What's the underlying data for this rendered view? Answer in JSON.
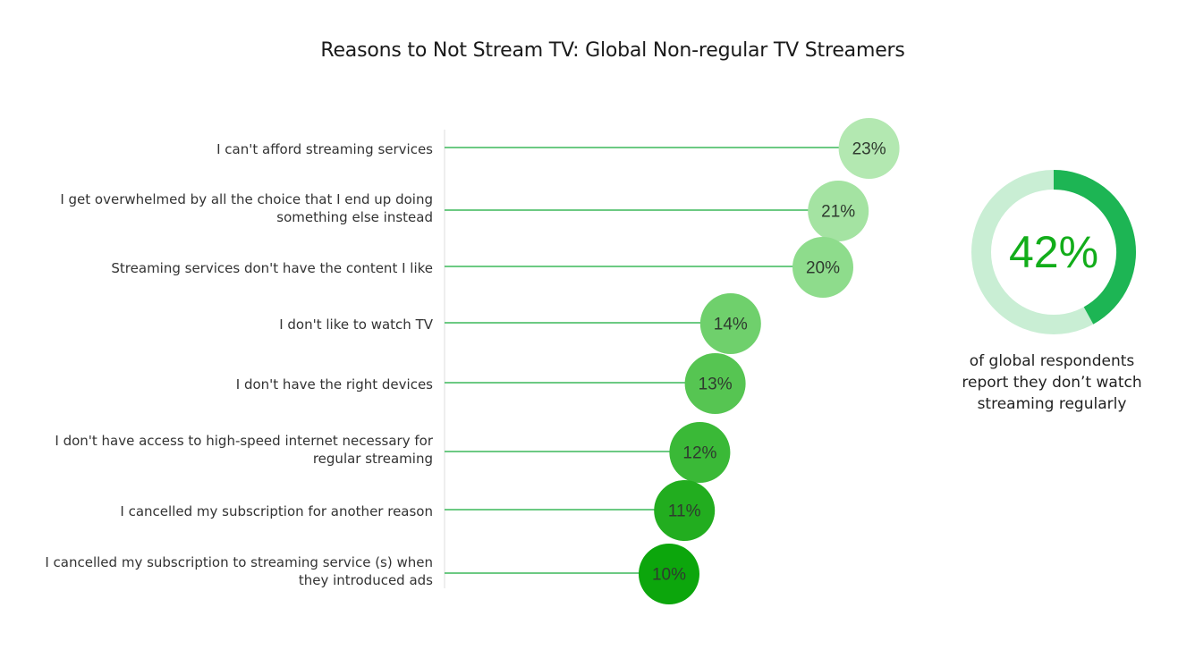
{
  "chart_data": {
    "type": "bar",
    "title": "Reasons to Not Stream TV: Global Non-regular TV Streamers",
    "categories": [
      "I can't afford streaming services",
      "I get overwhelmed by all the choice that I end up doing something else instead",
      "Streaming services don't have the content I like",
      "I don't like to watch TV",
      "I don't have the right devices",
      "I don't have access to high-speed internet necessary for regular streaming",
      "I cancelled my subscription for another reason",
      "I cancelled my subscription to streaming service(s) when they introduced ads"
    ],
    "category_lines": [
      [
        "I can't afford streaming services"
      ],
      [
        "I get overwhelmed by all the choice that I end up doing",
        "something else instead"
      ],
      [
        "Streaming services don't have the content I like"
      ],
      [
        "I don't like to watch TV"
      ],
      [
        "I don't have the right devices"
      ],
      [
        "I don't have access to high-speed internet necessary for",
        "regular streaming"
      ],
      [
        "I cancelled my subscription for another reason"
      ],
      [
        "I cancelled my subscription to streaming service (s) when",
        "they introduced ads"
      ]
    ],
    "values": [
      23,
      21,
      20,
      14,
      13,
      12,
      11,
      10
    ],
    "value_labels": [
      "23%",
      "21%",
      "20%",
      "14%",
      "13%",
      "12%",
      "11%",
      "10%"
    ],
    "bubble_colors": [
      "#b3e8b1",
      "#a4e3a2",
      "#8edc8c",
      "#6fd06c",
      "#56c552",
      "#3ab937",
      "#22ad1f",
      "#0ca60c"
    ],
    "line_color": "#3cb85a",
    "axis_color": "#dddddd",
    "xlabel": "",
    "ylabel": "",
    "grid": false,
    "legend": "none"
  },
  "summary": {
    "value": 42,
    "value_label": "42%",
    "caption_lines": [
      "of global respondents",
      "report they don’t watch",
      "streaming regularly"
    ],
    "track_color": "#c9eed4",
    "fill_color": "#1db554",
    "value_color": "#12ad1a"
  }
}
